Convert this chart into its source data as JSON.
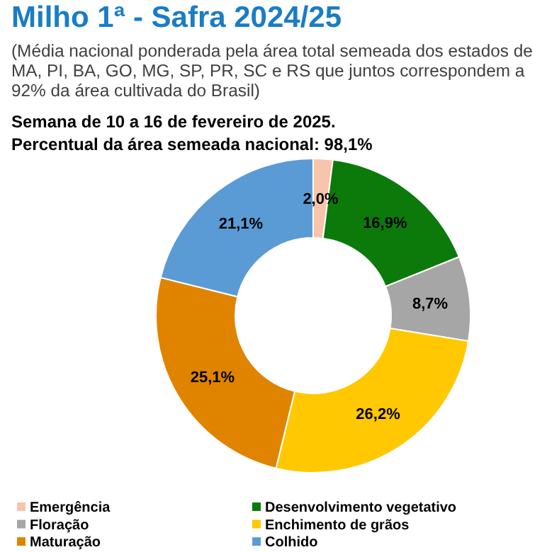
{
  "chart_data": {
    "type": "donut",
    "title": "Milho 1ª - Safra 2024/25",
    "subtitle": "(Média nacional ponderada pela área total semeada dos estados de MA, PI, BA, GO, MG, SP, PR, SC e RS que juntos correspondem a 92% da área cultivada do Brasil)",
    "annotations": [
      "Semana de 10 a 16 de fevereiro de 2025.",
      "Percentual da área semeada nacional: 98,1%"
    ],
    "categories": [
      "Emergência",
      "Desenvolvimento vegetativo",
      "Floração",
      "Enchimento de grãos",
      "Maturação",
      "Colhido"
    ],
    "values": [
      2.0,
      16.9,
      8.7,
      26.2,
      25.1,
      21.1
    ],
    "value_labels": [
      "2,0%",
      "16,9%",
      "8,7%",
      "26,2%",
      "25,1%",
      "21,1%"
    ],
    "colors": [
      "#f8c4ac",
      "#0b7a0b",
      "#a6a6a6",
      "#ffc800",
      "#e08400",
      "#5b9bd5"
    ],
    "legend": "bottom"
  }
}
